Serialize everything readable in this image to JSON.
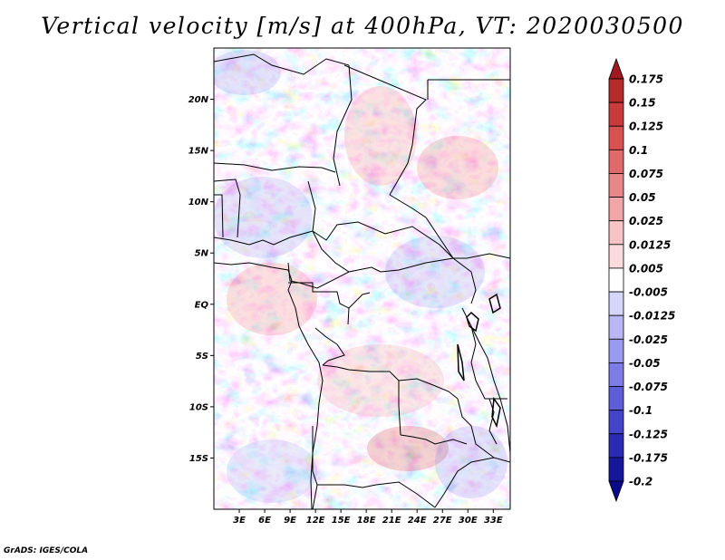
{
  "title": "Vertical velocity [m/s] at 400hPa, VT: 2020030500",
  "credit": "GrADS: IGES/COLA",
  "map": {
    "lat_range": [
      -20,
      25
    ],
    "lon_range": [
      0,
      35
    ],
    "lat_ticks": [
      {
        "value": 20,
        "label": "20N"
      },
      {
        "value": 15,
        "label": "15N"
      },
      {
        "value": 10,
        "label": "10N"
      },
      {
        "value": 5,
        "label": "5N"
      },
      {
        "value": 0,
        "label": "EQ"
      },
      {
        "value": -5,
        "label": "5S"
      },
      {
        "value": -10,
        "label": "10S"
      },
      {
        "value": -15,
        "label": "15S"
      }
    ],
    "lon_ticks": [
      {
        "value": 3,
        "label": "3E"
      },
      {
        "value": 6,
        "label": "6E"
      },
      {
        "value": 9,
        "label": "9E"
      },
      {
        "value": 12,
        "label": "12E"
      },
      {
        "value": 15,
        "label": "15E"
      },
      {
        "value": 18,
        "label": "18E"
      },
      {
        "value": 21,
        "label": "21E"
      },
      {
        "value": 24,
        "label": "24E"
      },
      {
        "value": 27,
        "label": "27E"
      },
      {
        "value": 30,
        "label": "30E"
      },
      {
        "value": 33,
        "label": "33E"
      }
    ]
  },
  "colorbar": {
    "levels": [
      {
        "label": "0.175",
        "color": "#a01820"
      },
      {
        "label": "0.15",
        "color": "#b52a2a"
      },
      {
        "label": "0.125",
        "color": "#c83c3c"
      },
      {
        "label": "0.1",
        "color": "#d85252"
      },
      {
        "label": "0.075",
        "color": "#e06a6a"
      },
      {
        "label": "0.05",
        "color": "#e88787"
      },
      {
        "label": "0.025",
        "color": "#f0a6a6"
      },
      {
        "label": "0.0125",
        "color": "#f6c4c4"
      },
      {
        "label": "0.005",
        "color": "#fadcdc"
      },
      {
        "label": "-0.005",
        "color": "#ffffff"
      },
      {
        "label": "-0.0125",
        "color": "#d6d6fa"
      },
      {
        "label": "-0.025",
        "color": "#b8b8f4"
      },
      {
        "label": "-0.05",
        "color": "#9a9aee"
      },
      {
        "label": "-0.075",
        "color": "#7c7ce4"
      },
      {
        "label": "-0.1",
        "color": "#5e5ed8"
      },
      {
        "label": "-0.125",
        "color": "#4444c8"
      },
      {
        "label": "-0.175",
        "color": "#2a2ab4"
      },
      {
        "label": "-0.2",
        "color": "#16169a"
      }
    ],
    "bottom_color": "#0a0a8a",
    "top_color": "#a01820"
  }
}
